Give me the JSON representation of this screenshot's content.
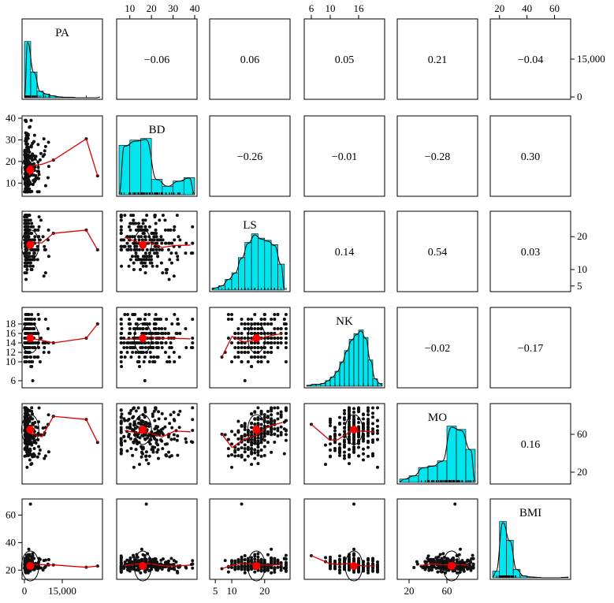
{
  "chart_data": {
    "type": "scatter",
    "title": "",
    "plot_kind": "pairs panels (scatterplot matrix with histograms, density curves, loess smooths, correlation ellipses and correlation coefficients)",
    "variables": [
      "PA",
      "BD",
      "LS",
      "NK",
      "MO",
      "BMI"
    ],
    "ranges": {
      "PA": [
        0,
        30000
      ],
      "BD": [
        5,
        40
      ],
      "LS": [
        4,
        27
      ],
      "NK": [
        5,
        21
      ],
      "MO": [
        10,
        90
      ],
      "BMI": [
        15,
        70
      ]
    },
    "tick_values": {
      "PA": [
        0,
        15000
      ],
      "BD": [
        10,
        20,
        30,
        40
      ],
      "LS": [
        5,
        10,
        20
      ],
      "NK": [
        6,
        10,
        14,
        16,
        18
      ],
      "MO": [
        20,
        60
      ],
      "BMI": [
        20,
        40,
        60
      ]
    },
    "tick_labels": {
      "PA": [
        "0",
        "15,000"
      ],
      "BD_top": [
        "10",
        "20",
        "30",
        "40"
      ],
      "BD_left": [
        "10",
        "20",
        "30",
        "40"
      ],
      "LS_right": [
        "5",
        "10",
        "20"
      ],
      "LS_bottom": [
        "5",
        "10",
        "20"
      ],
      "NK_top": [
        "6",
        "10",
        "16"
      ],
      "NK_left": [
        "6",
        "10",
        "12",
        "14",
        "16",
        "18"
      ],
      "MO_right": [
        "20",
        "60"
      ],
      "MO_bottom": [
        "20",
        "60"
      ],
      "BMI_top": [
        "20",
        "40",
        "60"
      ],
      "BMI_left": [
        "20",
        "40",
        "60"
      ],
      "PA_bottom": [
        "0",
        "15,000"
      ],
      "PA_right": [
        "0",
        "15,000"
      ]
    },
    "correlations": [
      {
        "row": "PA",
        "col": "BD",
        "r": "−0.06"
      },
      {
        "row": "PA",
        "col": "LS",
        "r": "0.06"
      },
      {
        "row": "PA",
        "col": "NK",
        "r": "0.05"
      },
      {
        "row": "PA",
        "col": "MO",
        "r": "0.21"
      },
      {
        "row": "PA",
        "col": "BMI",
        "r": "−0.04"
      },
      {
        "row": "BD",
        "col": "LS",
        "r": "−0.26"
      },
      {
        "row": "BD",
        "col": "NK",
        "r": "−0.01"
      },
      {
        "row": "BD",
        "col": "MO",
        "r": "−0.28"
      },
      {
        "row": "BD",
        "col": "BMI",
        "r": "0.30"
      },
      {
        "row": "LS",
        "col": "NK",
        "r": "0.14"
      },
      {
        "row": "LS",
        "col": "MO",
        "r": "0.54"
      },
      {
        "row": "LS",
        "col": "BMI",
        "r": "0.03"
      },
      {
        "row": "NK",
        "col": "MO",
        "r": "−0.02"
      },
      {
        "row": "NK",
        "col": "BMI",
        "r": "−0.17"
      },
      {
        "row": "MO",
        "col": "BMI",
        "r": "0.16"
      }
    ],
    "histograms": {
      "PA": {
        "breaks": [
          0,
          2500,
          5000,
          7500,
          10000,
          12500,
          15000,
          17500,
          20000,
          22500,
          25000,
          27500,
          30000
        ],
        "counts": [
          120,
          55,
          14,
          8,
          4,
          2,
          1,
          1,
          0,
          0,
          0,
          0
        ]
      },
      "BD": {
        "breaks": [
          5,
          10,
          15,
          20,
          25,
          30,
          35,
          40
        ],
        "counts": [
          58,
          64,
          66,
          18,
          10,
          16,
          20
        ]
      },
      "LS": {
        "breaks": [
          4,
          6,
          8,
          10,
          12,
          14,
          16,
          18,
          20,
          22,
          24,
          26
        ],
        "counts": [
          2,
          4,
          10,
          16,
          30,
          44,
          52,
          48,
          46,
          42,
          24
        ]
      },
      "NK": {
        "breaks": [
          5,
          6,
          7,
          8,
          9,
          10,
          11,
          12,
          13,
          14,
          15,
          16,
          17,
          18,
          19,
          20,
          21
        ],
        "counts": [
          1,
          2,
          2,
          3,
          6,
          10,
          16,
          26,
          38,
          50,
          56,
          60,
          52,
          28,
          8,
          3
        ]
      },
      "MO": {
        "breaks": [
          10,
          20,
          30,
          40,
          50,
          60,
          70,
          80,
          90
        ],
        "counts": [
          4,
          8,
          18,
          20,
          26,
          68,
          64,
          40
        ]
      },
      "BMI": {
        "breaks": [
          15,
          20,
          25,
          30,
          35,
          40,
          45,
          50,
          55,
          60,
          65,
          70
        ],
        "counts": [
          14,
          120,
          80,
          18,
          4,
          2,
          1,
          0,
          0,
          0,
          1
        ]
      }
    },
    "centroids": {
      "PA": 2300,
      "BD": 16,
      "LS": 17.5,
      "NK": 15,
      "MO": 65,
      "BMI": 23
    }
  }
}
